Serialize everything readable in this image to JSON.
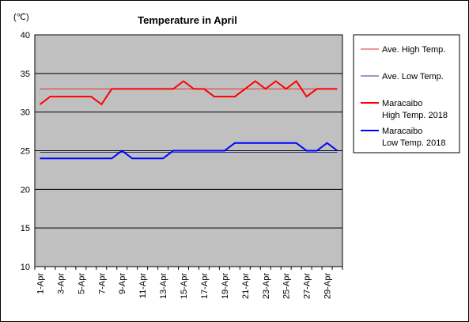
{
  "chart_data": {
    "type": "line",
    "title": "Temperature in April",
    "unit_label": "(℃)",
    "ylim": [
      10,
      40
    ],
    "y_ticks": [
      10,
      15,
      20,
      25,
      30,
      35,
      40
    ],
    "grid": true,
    "legend_position": "right",
    "x": [
      "1-Apr",
      "2-Apr",
      "3-Apr",
      "4-Apr",
      "5-Apr",
      "6-Apr",
      "7-Apr",
      "8-Apr",
      "9-Apr",
      "10-Apr",
      "11-Apr",
      "12-Apr",
      "13-Apr",
      "14-Apr",
      "15-Apr",
      "16-Apr",
      "17-Apr",
      "18-Apr",
      "19-Apr",
      "20-Apr",
      "21-Apr",
      "22-Apr",
      "23-Apr",
      "24-Apr",
      "25-Apr",
      "26-Apr",
      "27-Apr",
      "28-Apr",
      "29-Apr",
      "30-Apr"
    ],
    "x_tick_labels": [
      "1-Apr",
      "3-Apr",
      "5-Apr",
      "7-Apr",
      "9-Apr",
      "11-Apr",
      "13-Apr",
      "15-Apr",
      "17-Apr",
      "19-Apr",
      "21-Apr",
      "23-Apr",
      "25-Apr",
      "27-Apr",
      "29-Apr"
    ],
    "series": [
      {
        "name": "Ave. High Temp.",
        "color": "#e03030",
        "width": 1,
        "values": [
          33,
          33,
          33,
          33,
          33,
          33,
          33,
          33,
          33,
          33,
          33,
          33,
          33,
          33,
          33,
          33,
          33,
          33,
          33,
          33,
          33,
          33,
          33,
          33,
          33,
          33,
          33,
          33,
          33,
          33
        ]
      },
      {
        "name": "Ave. Low Temp.",
        "color": "#303090",
        "width": 1,
        "values": [
          24.8,
          24.8,
          24.8,
          24.8,
          24.8,
          24.8,
          24.8,
          24.8,
          24.8,
          24.8,
          24.8,
          24.8,
          24.8,
          24.8,
          24.8,
          24.8,
          24.8,
          24.8,
          24.8,
          24.8,
          24.8,
          24.8,
          24.8,
          24.8,
          24.8,
          24.8,
          24.8,
          24.8,
          24.8,
          24.8
        ]
      },
      {
        "name": "Maracaibo\nHigh Temp. 2018",
        "color": "#ff0000",
        "width": 2,
        "values": [
          31,
          32,
          32,
          32,
          32,
          32,
          31,
          33,
          33,
          33,
          33,
          33,
          33,
          33,
          34,
          33,
          33,
          32,
          32,
          32,
          33,
          34,
          33,
          34,
          33,
          34,
          32,
          33,
          33,
          33
        ]
      },
      {
        "name": "Maracaibo\nLow Temp. 2018",
        "color": "#0000ff",
        "width": 2,
        "values": [
          24,
          24,
          24,
          24,
          24,
          24,
          24,
          24,
          25,
          24,
          24,
          24,
          24,
          25,
          25,
          25,
          25,
          25,
          25,
          26,
          26,
          26,
          26,
          26,
          26,
          26,
          25,
          25,
          26,
          25
        ]
      }
    ]
  }
}
